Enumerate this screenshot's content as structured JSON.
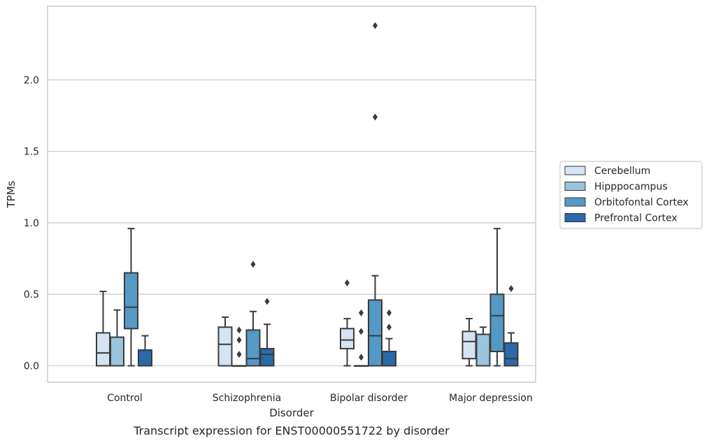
{
  "chart_data": {
    "type": "box",
    "caption": "Transcript expression for ENST00000551722 by disorder",
    "xlabel": "Disorder",
    "ylabel": "TPMs",
    "ylim": [
      -0.115,
      2.515
    ],
    "yticks": [
      0.0,
      0.5,
      1.0,
      1.5,
      2.0
    ],
    "ytick_labels": [
      "0.0",
      "0.5",
      "1.0",
      "1.5",
      "2.0"
    ],
    "grid": "horizontal",
    "legend_position": "right",
    "categories": [
      "Control",
      "Schizophrenia",
      "Bipolar disorder",
      "Major depression"
    ],
    "series": [
      {
        "name": "Cerebellum",
        "color": "#d5e4f3",
        "boxes": [
          {
            "whislo": 0.0,
            "q1": 0.0,
            "med": 0.09,
            "q3": 0.23,
            "whishi": 0.52,
            "fliers": []
          },
          {
            "whislo": 0.0,
            "q1": 0.0,
            "med": 0.15,
            "q3": 0.27,
            "whishi": 0.34,
            "fliers": []
          },
          {
            "whislo": 0.0,
            "q1": 0.12,
            "med": 0.18,
            "q3": 0.26,
            "whishi": 0.33,
            "fliers": [
              0.58
            ]
          },
          {
            "whislo": 0.0,
            "q1": 0.05,
            "med": 0.17,
            "q3": 0.24,
            "whishi": 0.33,
            "fliers": []
          }
        ]
      },
      {
        "name": "Hipppocampus",
        "color": "#9ac4de",
        "boxes": [
          {
            "whislo": 0.0,
            "q1": 0.0,
            "med": 0.0,
            "q3": 0.2,
            "whishi": 0.39,
            "fliers": []
          },
          {
            "whislo": 0.0,
            "q1": 0.0,
            "med": 0.0,
            "q3": 0.0,
            "whishi": 0.0,
            "fliers": [
              0.08,
              0.18,
              0.25
            ]
          },
          {
            "whislo": 0.0,
            "q1": 0.0,
            "med": 0.0,
            "q3": 0.0,
            "whishi": 0.0,
            "fliers": [
              0.06,
              0.24,
              0.37
            ]
          },
          {
            "whislo": 0.0,
            "q1": 0.0,
            "med": 0.0,
            "q3": 0.22,
            "whishi": 0.27,
            "fliers": []
          }
        ]
      },
      {
        "name": "Orbitofontal Cortex",
        "color": "#5599c6",
        "boxes": [
          {
            "whislo": 0.0,
            "q1": 0.26,
            "med": 0.41,
            "q3": 0.65,
            "whishi": 0.96,
            "fliers": []
          },
          {
            "whislo": 0.0,
            "q1": 0.0,
            "med": 0.05,
            "q3": 0.25,
            "whishi": 0.38,
            "fliers": [
              0.71
            ]
          },
          {
            "whislo": 0.0,
            "q1": 0.0,
            "med": 0.21,
            "q3": 0.46,
            "whishi": 0.63,
            "fliers": [
              1.74,
              2.38
            ]
          },
          {
            "whislo": 0.0,
            "q1": 0.1,
            "med": 0.35,
            "q3": 0.5,
            "whishi": 0.96,
            "fliers": []
          }
        ]
      },
      {
        "name": "Prefrontal Cortex",
        "color": "#2a69ab",
        "boxes": [
          {
            "whislo": 0.0,
            "q1": 0.0,
            "med": 0.0,
            "q3": 0.11,
            "whishi": 0.21,
            "fliers": []
          },
          {
            "whislo": 0.0,
            "q1": 0.0,
            "med": 0.08,
            "q3": 0.12,
            "whishi": 0.29,
            "fliers": [
              0.45
            ]
          },
          {
            "whislo": 0.0,
            "q1": 0.0,
            "med": 0.0,
            "q3": 0.1,
            "whishi": 0.19,
            "fliers": [
              0.27,
              0.37
            ]
          },
          {
            "whislo": 0.0,
            "q1": 0.0,
            "med": 0.05,
            "q3": 0.16,
            "whishi": 0.23,
            "fliers": [
              0.54
            ]
          }
        ]
      }
    ]
  }
}
